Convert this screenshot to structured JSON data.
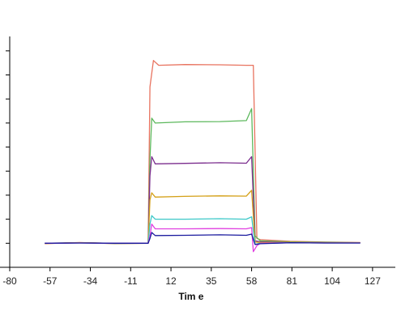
{
  "chart_data": {
    "type": "line",
    "xlabel": "Tim e",
    "ylabel": "",
    "xlim": [
      -80,
      140
    ],
    "ylim": [
      -1,
      8.6
    ],
    "x_ticks": [
      -80,
      -57,
      -34,
      -11,
      12,
      35,
      58,
      81,
      104,
      127
    ],
    "x_tick_labels": [
      "-80",
      "-57",
      "-34",
      "-11",
      "12",
      "35",
      "58",
      "81",
      "104",
      "127"
    ],
    "y_ticks": [
      -1,
      0,
      1,
      2,
      3,
      4,
      5,
      6,
      7,
      8
    ],
    "grid": false,
    "legend": "none",
    "series": [
      {
        "color": "#e8735f",
        "x": [
          -60,
          -40,
          -20,
          -1,
          0,
          2,
          5,
          20,
          40,
          55,
          59,
          61,
          63,
          80,
          100,
          120
        ],
        "y": [
          -0.02,
          0.03,
          -0.02,
          0.0,
          6.5,
          7.6,
          7.4,
          7.43,
          7.42,
          7.4,
          7.4,
          0.2,
          0.15,
          0.08,
          0.05,
          0.03
        ]
      },
      {
        "color": "#5cb85c",
        "x": [
          -60,
          -40,
          -20,
          -1,
          0,
          1,
          3,
          20,
          40,
          55,
          58,
          60,
          63,
          80,
          100,
          120
        ],
        "y": [
          0.0,
          0.02,
          -0.01,
          0.0,
          3.5,
          5.2,
          5.0,
          5.05,
          5.06,
          5.1,
          5.6,
          0.3,
          0.1,
          0.06,
          0.04,
          0.02
        ]
      },
      {
        "color": "#7b2d8e",
        "x": [
          -60,
          -40,
          -20,
          -1,
          0,
          1,
          3,
          20,
          40,
          55,
          58,
          60,
          63,
          80,
          100,
          120
        ],
        "y": [
          0.0,
          0.02,
          0.0,
          0.0,
          2.8,
          3.6,
          3.3,
          3.32,
          3.35,
          3.33,
          3.6,
          0.1,
          0.06,
          0.04,
          0.02,
          0.02
        ]
      },
      {
        "color": "#d4a017",
        "x": [
          -60,
          -40,
          -20,
          -1,
          0,
          1,
          3,
          20,
          40,
          55,
          58,
          60,
          63,
          80,
          100,
          120
        ],
        "y": [
          -0.01,
          0.02,
          0.0,
          0.0,
          1.8,
          2.1,
          1.92,
          1.95,
          1.97,
          1.96,
          2.2,
          0.05,
          0.03,
          0.04,
          0.02,
          0.02
        ]
      },
      {
        "color": "#3cc8c8",
        "x": [
          -60,
          -40,
          -20,
          -1,
          0,
          1,
          3,
          20,
          40,
          55,
          58,
          60,
          63,
          80,
          100,
          120
        ],
        "y": [
          0.0,
          0.01,
          0.0,
          0.0,
          0.8,
          1.15,
          1.0,
          1.0,
          1.02,
          1.0,
          1.1,
          -0.05,
          0.0,
          0.02,
          0.01,
          0.01
        ]
      },
      {
        "color": "#e040e0",
        "x": [
          -60,
          -40,
          -20,
          -1,
          0,
          1,
          3,
          20,
          40,
          55,
          58,
          59,
          61,
          63,
          80,
          100,
          120
        ],
        "y": [
          0.0,
          0.01,
          0.0,
          0.0,
          0.3,
          0.8,
          0.6,
          0.6,
          0.61,
          0.6,
          0.65,
          -0.35,
          -0.1,
          0.0,
          0.02,
          0.01,
          0.01
        ]
      },
      {
        "color": "#1a1a9e",
        "x": [
          -60,
          -40,
          -20,
          -1,
          0,
          1,
          3,
          20,
          40,
          55,
          58,
          60,
          63,
          80,
          100,
          120
        ],
        "y": [
          0.0,
          0.01,
          0.0,
          0.0,
          0.2,
          0.45,
          0.32,
          0.33,
          0.35,
          0.33,
          0.38,
          -0.05,
          -0.02,
          0.02,
          0.01,
          0.01
        ]
      }
    ]
  }
}
